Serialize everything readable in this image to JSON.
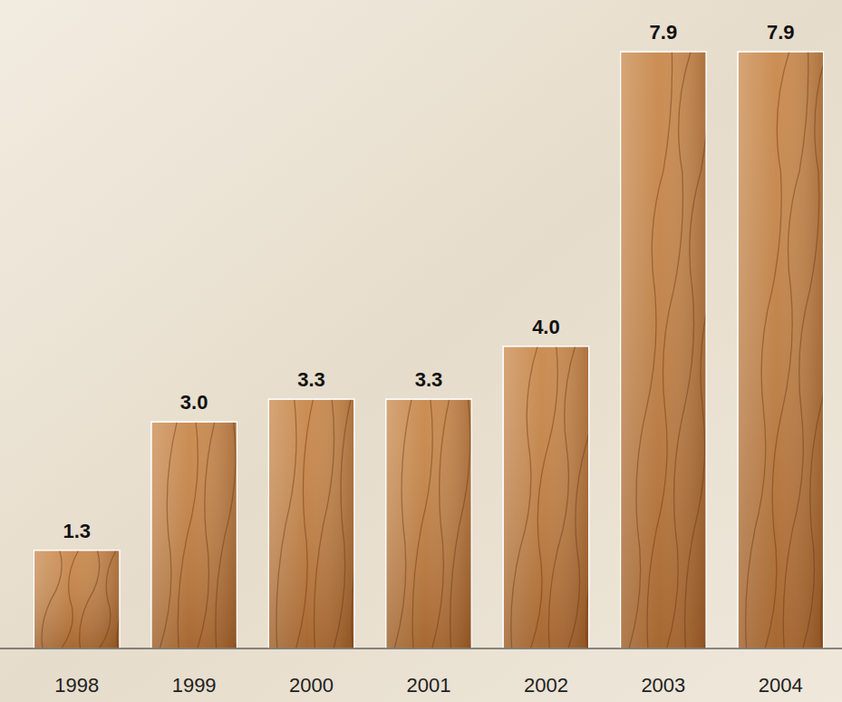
{
  "chart_data": {
    "type": "bar",
    "categories": [
      "1998",
      "1999",
      "2000",
      "2001",
      "2002",
      "2003",
      "2004"
    ],
    "values": [
      1.3,
      3.0,
      3.3,
      3.3,
      4.0,
      7.9,
      7.9
    ],
    "value_labels": [
      "1.3",
      "3.0",
      "3.3",
      "3.3",
      "4.0",
      "7.9",
      "7.9"
    ],
    "color": "#c27a36",
    "data_labels": true,
    "tick_labels": "x",
    "grid": false
  }
}
